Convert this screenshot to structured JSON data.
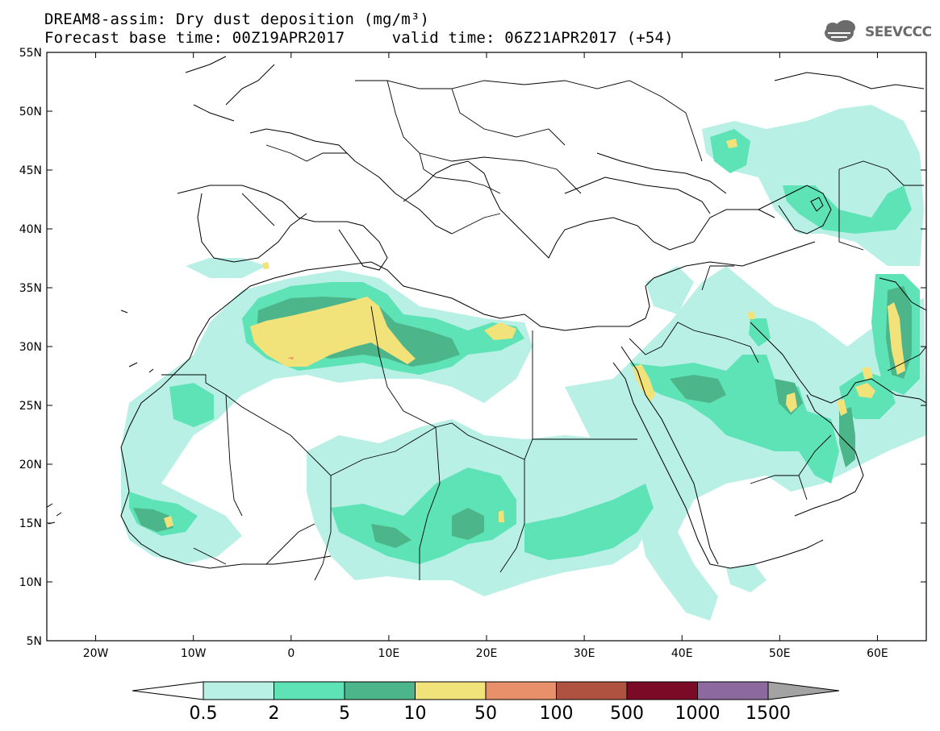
{
  "header": {
    "line1": "DREAM8-assim: Dry dust deposition (mg/m³)",
    "line2": "Forecast base time: 00Z19APR2017     valid time: 06Z21APR2017 (+54)"
  },
  "logo": {
    "text": "SEEVCCC",
    "icon": "cloud-icon"
  },
  "map": {
    "lon_range": [
      -25,
      65
    ],
    "lat_range": [
      5,
      55
    ],
    "lat_ticks": [
      "55N",
      "50N",
      "45N",
      "40N",
      "35N",
      "30N",
      "25N",
      "20N",
      "15N",
      "10N",
      "5N"
    ],
    "lon_ticks": [
      "20W",
      "10W",
      "0",
      "10E",
      "20E",
      "30E",
      "40E",
      "50E",
      "60E"
    ]
  },
  "colorbar": {
    "labels": [
      "0.5",
      "2",
      "5",
      "10",
      "50",
      "100",
      "500",
      "1000",
      "1500"
    ],
    "colors": [
      "#b9f0e6",
      "#5ee3b7",
      "#4db58a",
      "#f2e27a",
      "#e8906a",
      "#b05240",
      "#7a0a25",
      "#8c6aa0",
      "#a3a3a3"
    ],
    "low_arrow_color": "#ffffff",
    "high_arrow_color": "#a3a3a3"
  },
  "palette": {
    "c1": "#b9f0e6",
    "c2": "#5ee3b7",
    "c3": "#4db58a",
    "c4": "#f2e27a",
    "c5": "#e8906a",
    "border": "#000000"
  }
}
